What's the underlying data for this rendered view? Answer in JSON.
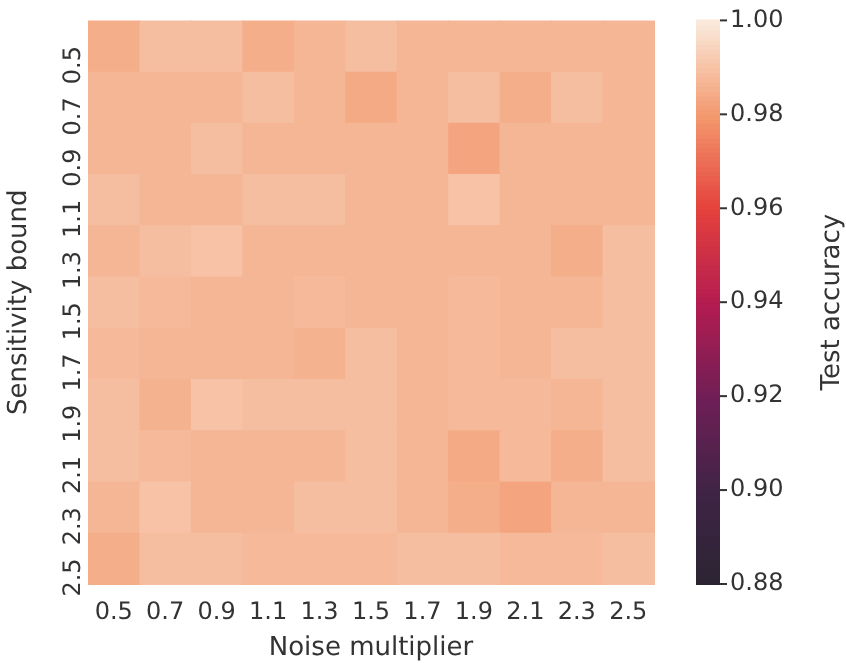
{
  "chart_data": {
    "type": "heatmap",
    "xlabel": "Noise multiplier",
    "ylabel": "Sensitivity bound",
    "clabel": "Test accuracy",
    "categories": [
      "0.5",
      "0.7",
      "0.9",
      "1.1",
      "1.3",
      "1.5",
      "1.7",
      "1.9",
      "2.1",
      "2.3",
      "2.5"
    ],
    "y_categories": [
      "0.5",
      "0.7",
      "0.9",
      "1.1",
      "1.3",
      "1.5",
      "1.7",
      "1.9",
      "2.1",
      "2.3",
      "2.5"
    ],
    "cells": [
      [
        0.985,
        0.989,
        0.989,
        0.985,
        0.987,
        0.989,
        0.987,
        0.987,
        0.987,
        0.987,
        0.987
      ],
      [
        0.987,
        0.987,
        0.987,
        0.989,
        0.987,
        0.984,
        0.987,
        0.989,
        0.985,
        0.989,
        0.987
      ],
      [
        0.987,
        0.987,
        0.989,
        0.987,
        0.987,
        0.987,
        0.987,
        0.983,
        0.987,
        0.987,
        0.987
      ],
      [
        0.989,
        0.987,
        0.987,
        0.989,
        0.989,
        0.987,
        0.987,
        0.99,
        0.987,
        0.987,
        0.987
      ],
      [
        0.987,
        0.989,
        0.99,
        0.987,
        0.987,
        0.987,
        0.987,
        0.987,
        0.987,
        0.985,
        0.989
      ],
      [
        0.989,
        0.988,
        0.987,
        0.987,
        0.988,
        0.987,
        0.987,
        0.988,
        0.987,
        0.987,
        0.989
      ],
      [
        0.988,
        0.987,
        0.987,
        0.987,
        0.986,
        0.989,
        0.987,
        0.988,
        0.987,
        0.989,
        0.989
      ],
      [
        0.989,
        0.986,
        0.99,
        0.989,
        0.989,
        0.989,
        0.987,
        0.988,
        0.988,
        0.987,
        0.989
      ],
      [
        0.989,
        0.988,
        0.987,
        0.987,
        0.987,
        0.989,
        0.987,
        0.984,
        0.988,
        0.985,
        0.989
      ],
      [
        0.987,
        0.99,
        0.987,
        0.987,
        0.989,
        0.989,
        0.987,
        0.985,
        0.983,
        0.987,
        0.987
      ],
      [
        0.985,
        0.989,
        0.989,
        0.988,
        0.988,
        0.988,
        0.989,
        0.989,
        0.988,
        0.988,
        0.989
      ]
    ],
    "clim": [
      0.88,
      1.0
    ],
    "cticks": [
      {
        "value": 0.88,
        "label": "0.88"
      },
      {
        "value": 0.9,
        "label": "0.90"
      },
      {
        "value": 0.92,
        "label": "0.92"
      },
      {
        "value": 0.94,
        "label": "0.94"
      },
      {
        "value": 0.96,
        "label": "0.96"
      },
      {
        "value": 0.98,
        "label": "0.98"
      },
      {
        "value": 1.0,
        "label": "1.00"
      }
    ]
  }
}
